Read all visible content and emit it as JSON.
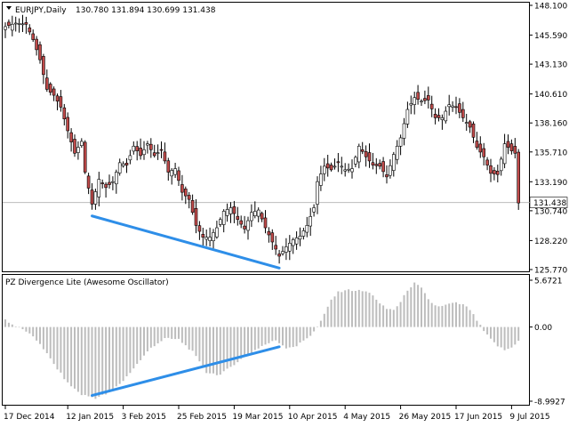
{
  "colors": {
    "background": "#ffffff",
    "frame": "#000000",
    "candle_body": "#c04a4a",
    "candle_wick": "#000000",
    "histogram": "#bdbdbd",
    "divergence": "#2e8ee8",
    "current_line": "#bdbdbd",
    "price_box": "#ffffff"
  },
  "main_panel": {
    "symbol_text": "EURJPY,Daily",
    "ohlc_text": "130.780 131.894 130.699 131.438",
    "current_price_label": "131.438",
    "menu_icon": "triangle-down-icon"
  },
  "indicator_panel": {
    "title": "PZ Divergence Lite (Awesome Oscillator)"
  },
  "chart_data": [
    {
      "type": "candlestick",
      "title": "EURJPY,Daily",
      "ohlc_header": {
        "open": 130.78,
        "high": 131.894,
        "low": 130.699,
        "close": 131.438
      },
      "ylim": [
        125.77,
        148.1
      ],
      "y_tick_labels": [
        "148.100",
        "145.590",
        "143.130",
        "140.610",
        "138.160",
        "135.710",
        "133.190",
        "130.740",
        "128.220",
        "125.770"
      ],
      "y_ticks": [
        148.1,
        145.59,
        143.13,
        140.61,
        138.16,
        135.71,
        133.19,
        130.74,
        128.22,
        125.77
      ],
      "x_tick_labels": [
        "17 Dec 2014",
        "12 Jan 2015",
        "3 Feb 2015",
        "25 Feb 2015",
        "19 Mar 2015",
        "10 Apr 2015",
        "4 May 2015",
        "26 May 2015",
        "17 Jun 2015",
        "9 Jul 2015"
      ],
      "x_tick_index": [
        0,
        18,
        34,
        50,
        66,
        82,
        98,
        114,
        130,
        146
      ],
      "current_price": 131.438,
      "close_path": [
        {
          "i": 0,
          "v": 146.3
        },
        {
          "i": 3,
          "v": 146.6
        },
        {
          "i": 6,
          "v": 146.5
        },
        {
          "i": 8,
          "v": 145.2
        },
        {
          "i": 10,
          "v": 143.5
        },
        {
          "i": 12,
          "v": 141.0
        },
        {
          "i": 14,
          "v": 140.5
        },
        {
          "i": 16,
          "v": 139.5
        },
        {
          "i": 18,
          "v": 137.5
        },
        {
          "i": 20,
          "v": 135.6
        },
        {
          "i": 22,
          "v": 136.6
        },
        {
          "i": 23,
          "v": 134.0
        },
        {
          "i": 25,
          "v": 131.3
        },
        {
          "i": 27,
          "v": 133.4
        },
        {
          "i": 29,
          "v": 132.7
        },
        {
          "i": 31,
          "v": 133.2
        },
        {
          "i": 33,
          "v": 134.8
        },
        {
          "i": 35,
          "v": 134.6
        },
        {
          "i": 37,
          "v": 136.2
        },
        {
          "i": 39,
          "v": 135.4
        },
        {
          "i": 41,
          "v": 136.4
        },
        {
          "i": 43,
          "v": 135.4
        },
        {
          "i": 45,
          "v": 135.9
        },
        {
          "i": 47,
          "v": 134.0
        },
        {
          "i": 49,
          "v": 134.3
        },
        {
          "i": 51,
          "v": 132.3
        },
        {
          "i": 53,
          "v": 131.7
        },
        {
          "i": 55,
          "v": 129.5
        },
        {
          "i": 57,
          "v": 128.5
        },
        {
          "i": 59,
          "v": 128.5
        },
        {
          "i": 61,
          "v": 129.3
        },
        {
          "i": 63,
          "v": 130.7
        },
        {
          "i": 65,
          "v": 131.0
        },
        {
          "i": 67,
          "v": 130.0
        },
        {
          "i": 69,
          "v": 129.2
        },
        {
          "i": 71,
          "v": 130.6
        },
        {
          "i": 73,
          "v": 130.8
        },
        {
          "i": 75,
          "v": 129.3
        },
        {
          "i": 77,
          "v": 128.1
        },
        {
          "i": 79,
          "v": 126.9
        },
        {
          "i": 81,
          "v": 127.7
        },
        {
          "i": 83,
          "v": 128.3
        },
        {
          "i": 85,
          "v": 128.6
        },
        {
          "i": 87,
          "v": 129.5
        },
        {
          "i": 89,
          "v": 131.0
        },
        {
          "i": 90,
          "v": 133.2
        },
        {
          "i": 92,
          "v": 134.5
        },
        {
          "i": 94,
          "v": 134.2
        },
        {
          "i": 96,
          "v": 134.8
        },
        {
          "i": 98,
          "v": 134.2
        },
        {
          "i": 100,
          "v": 134.3
        },
        {
          "i": 102,
          "v": 136.2
        },
        {
          "i": 104,
          "v": 135.3
        },
        {
          "i": 106,
          "v": 134.6
        },
        {
          "i": 108,
          "v": 134.5
        },
        {
          "i": 110,
          "v": 133.6
        },
        {
          "i": 112,
          "v": 135.5
        },
        {
          "i": 114,
          "v": 136.9
        },
        {
          "i": 116,
          "v": 139.3
        },
        {
          "i": 118,
          "v": 140.3
        },
        {
          "i": 120,
          "v": 140.0
        },
        {
          "i": 122,
          "v": 140.1
        },
        {
          "i": 124,
          "v": 138.6
        },
        {
          "i": 126,
          "v": 138.6
        },
        {
          "i": 128,
          "v": 139.7
        },
        {
          "i": 130,
          "v": 139.5
        },
        {
          "i": 132,
          "v": 138.6
        },
        {
          "i": 134,
          "v": 137.8
        },
        {
          "i": 136,
          "v": 136.1
        },
        {
          "i": 138,
          "v": 135.3
        },
        {
          "i": 140,
          "v": 133.9
        },
        {
          "i": 142,
          "v": 133.8
        },
        {
          "i": 144,
          "v": 136.4
        },
        {
          "i": 146,
          "v": 135.8
        },
        {
          "i": 147,
          "v": 135.6
        },
        {
          "i": 148,
          "v": 131.4
        }
      ],
      "divergence_line": {
        "from": {
          "i": 25,
          "v": 130.3
        },
        "to": {
          "i": 79,
          "v": 125.9
        }
      }
    },
    {
      "type": "bar",
      "title": "PZ Divergence Lite (Awesome Oscillator)",
      "ylim": [
        -8.9927,
        5.6721
      ],
      "y_tick_labels": [
        "5.6721",
        "0.00",
        "-8.9927"
      ],
      "y_ticks": [
        5.6721,
        0.0,
        -8.9927
      ],
      "value_path": [
        {
          "i": 0,
          "v": 0.9
        },
        {
          "i": 2,
          "v": 0.3
        },
        {
          "i": 6,
          "v": -0.5
        },
        {
          "i": 10,
          "v": -2.0
        },
        {
          "i": 14,
          "v": -4.5
        },
        {
          "i": 18,
          "v": -6.8
        },
        {
          "i": 22,
          "v": -8.2
        },
        {
          "i": 26,
          "v": -8.6
        },
        {
          "i": 30,
          "v": -8.0
        },
        {
          "i": 34,
          "v": -6.5
        },
        {
          "i": 38,
          "v": -4.5
        },
        {
          "i": 42,
          "v": -2.5
        },
        {
          "i": 46,
          "v": -1.4
        },
        {
          "i": 50,
          "v": -1.5
        },
        {
          "i": 54,
          "v": -3.0
        },
        {
          "i": 58,
          "v": -5.5
        },
        {
          "i": 62,
          "v": -5.8
        },
        {
          "i": 66,
          "v": -4.5
        },
        {
          "i": 70,
          "v": -3.3
        },
        {
          "i": 74,
          "v": -2.3
        },
        {
          "i": 78,
          "v": -1.6
        },
        {
          "i": 81,
          "v": -2.5
        },
        {
          "i": 84,
          "v": -2.3
        },
        {
          "i": 88,
          "v": -1.0
        },
        {
          "i": 90,
          "v": 0.0
        },
        {
          "i": 92,
          "v": 1.5
        },
        {
          "i": 94,
          "v": 3.3
        },
        {
          "i": 96,
          "v": 4.2
        },
        {
          "i": 98,
          "v": 4.5
        },
        {
          "i": 102,
          "v": 4.4
        },
        {
          "i": 104,
          "v": 4.3
        },
        {
          "i": 106,
          "v": 3.9
        },
        {
          "i": 108,
          "v": 2.8
        },
        {
          "i": 110,
          "v": 2.2
        },
        {
          "i": 112,
          "v": 2.1
        },
        {
          "i": 114,
          "v": 3.0
        },
        {
          "i": 116,
          "v": 4.5
        },
        {
          "i": 118,
          "v": 5.3
        },
        {
          "i": 120,
          "v": 4.7
        },
        {
          "i": 122,
          "v": 3.3
        },
        {
          "i": 124,
          "v": 2.6
        },
        {
          "i": 126,
          "v": 2.5
        },
        {
          "i": 128,
          "v": 2.8
        },
        {
          "i": 130,
          "v": 2.9
        },
        {
          "i": 132,
          "v": 2.7
        },
        {
          "i": 134,
          "v": 2.1
        },
        {
          "i": 136,
          "v": 0.8
        },
        {
          "i": 138,
          "v": -0.5
        },
        {
          "i": 140,
          "v": -1.5
        },
        {
          "i": 142,
          "v": -2.3
        },
        {
          "i": 144,
          "v": -2.8
        },
        {
          "i": 146,
          "v": -2.5
        },
        {
          "i": 148,
          "v": -1.6
        }
      ],
      "divergence_line": {
        "from": {
          "i": 25,
          "v": -8.3
        },
        "to": {
          "i": 79,
          "v": -2.4
        }
      }
    }
  ]
}
